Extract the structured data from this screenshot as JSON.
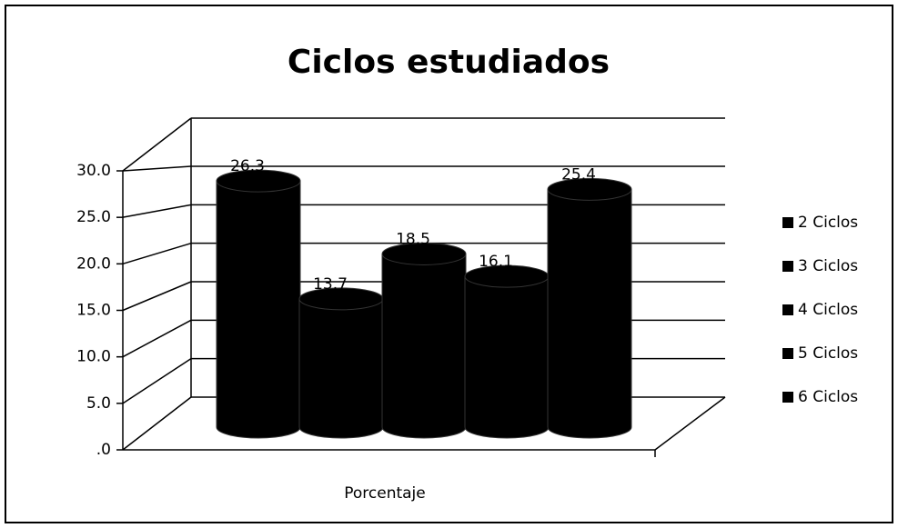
{
  "chart_data": {
    "type": "bar3d",
    "title": "Ciclos estudiados",
    "categories": [
      "Porcentaje"
    ],
    "series": [
      {
        "name": "2 Ciclos",
        "color": "#000000",
        "values": [
          26.3
        ]
      },
      {
        "name": "3 Ciclos",
        "color": "#000000",
        "values": [
          13.7
        ]
      },
      {
        "name": "4 Ciclos",
        "color": "#000000",
        "values": [
          18.5
        ]
      },
      {
        "name": "5 Ciclos",
        "color": "#000000",
        "values": [
          16.1
        ]
      },
      {
        "name": "6 Ciclos",
        "color": "#000000",
        "values": [
          25.4
        ]
      }
    ],
    "ylim": [
      0,
      30
    ],
    "yticks": [
      {
        "value": 0,
        "label": ".0"
      },
      {
        "value": 5,
        "label": "5.0"
      },
      {
        "value": 10,
        "label": "10.0"
      },
      {
        "value": 15,
        "label": "15.0"
      },
      {
        "value": 20,
        "label": "20.0"
      },
      {
        "value": 25,
        "label": "25.0"
      },
      {
        "value": 30,
        "label": "30.0"
      }
    ],
    "grid": true,
    "legend": "right"
  }
}
